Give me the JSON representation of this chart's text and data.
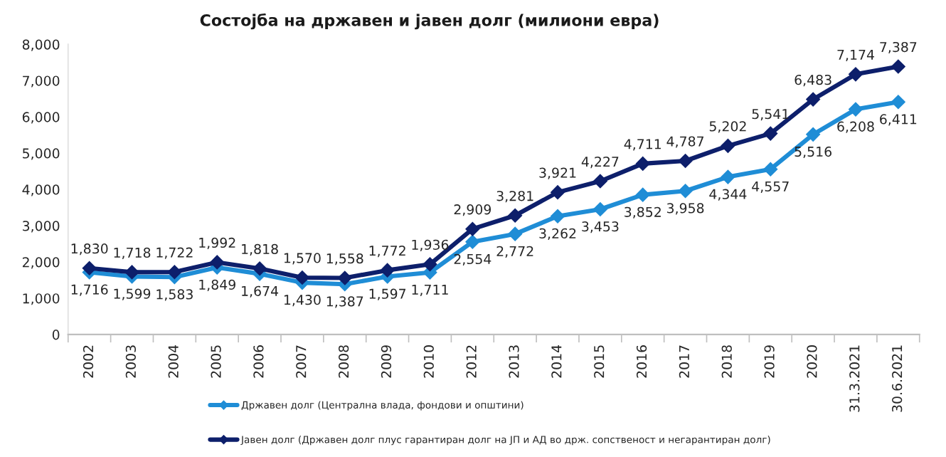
{
  "chart_data": {
    "type": "line",
    "title": "Состојба на државен и јавен долг (милиони евра)",
    "categories": [
      "2002",
      "2003",
      "2004",
      "2005",
      "2006",
      "2007",
      "2008",
      "2009",
      "2010",
      "2012",
      "2013",
      "2014",
      "2015",
      "2016",
      "2017",
      "2018",
      "2019",
      "2020",
      "31.3.2021",
      "30.6.2021"
    ],
    "series": [
      {
        "name": "Државен долг (Централна влада, фондови и општини)",
        "color": "#1f8dd6",
        "values": [
          1716,
          1599,
          1583,
          1849,
          1674,
          1430,
          1387,
          1597,
          1711,
          2554,
          2772,
          3262,
          3453,
          3852,
          3958,
          4344,
          4557,
          5516,
          6208,
          6411
        ],
        "value_labels": [
          "1,716",
          "1,599",
          "1,583",
          "1,849",
          "1,674",
          "1,430",
          "1,387",
          "1,597",
          "1,711",
          "2,554",
          "2,772",
          "3,262",
          "3,453",
          "3,852",
          "3,958",
          "4,344",
          "4,557",
          "5,516",
          "6,208",
          "6,411"
        ]
      },
      {
        "name": "Јавен долг (Државен долг плус гарантиран долг на ЈП и АД во држ. сопственост и негарантиран долг)",
        "color": "#0d1f6b",
        "values": [
          1830,
          1718,
          1722,
          1992,
          1818,
          1570,
          1558,
          1772,
          1936,
          2909,
          3281,
          3921,
          4227,
          4711,
          4787,
          5202,
          5541,
          6483,
          7174,
          7387
        ],
        "value_labels": [
          "1,830",
          "1,718",
          "1,722",
          "1,992",
          "1,818",
          "1,570",
          "1,558",
          "1,772",
          "1,936",
          "2,909",
          "3,281",
          "3,921",
          "4,227",
          "4,711",
          "4,787",
          "5,202",
          "5,541",
          "6,483",
          "7,174",
          "7,387"
        ]
      }
    ],
    "ylim": [
      0,
      8000
    ],
    "yticks": [
      {
        "value": 0,
        "label": "0"
      },
      {
        "value": 1000,
        "label": "1,000"
      },
      {
        "value": 2000,
        "label": "2,000"
      },
      {
        "value": 3000,
        "label": "3,000"
      },
      {
        "value": 4000,
        "label": "4,000"
      },
      {
        "value": 5000,
        "label": "5,000"
      },
      {
        "value": 6000,
        "label": "6,000"
      },
      {
        "value": 7000,
        "label": "7,000"
      },
      {
        "value": 8000,
        "label": "8,000"
      }
    ],
    "marker": "diamond",
    "line_style": "solid",
    "legend": "bottom"
  }
}
